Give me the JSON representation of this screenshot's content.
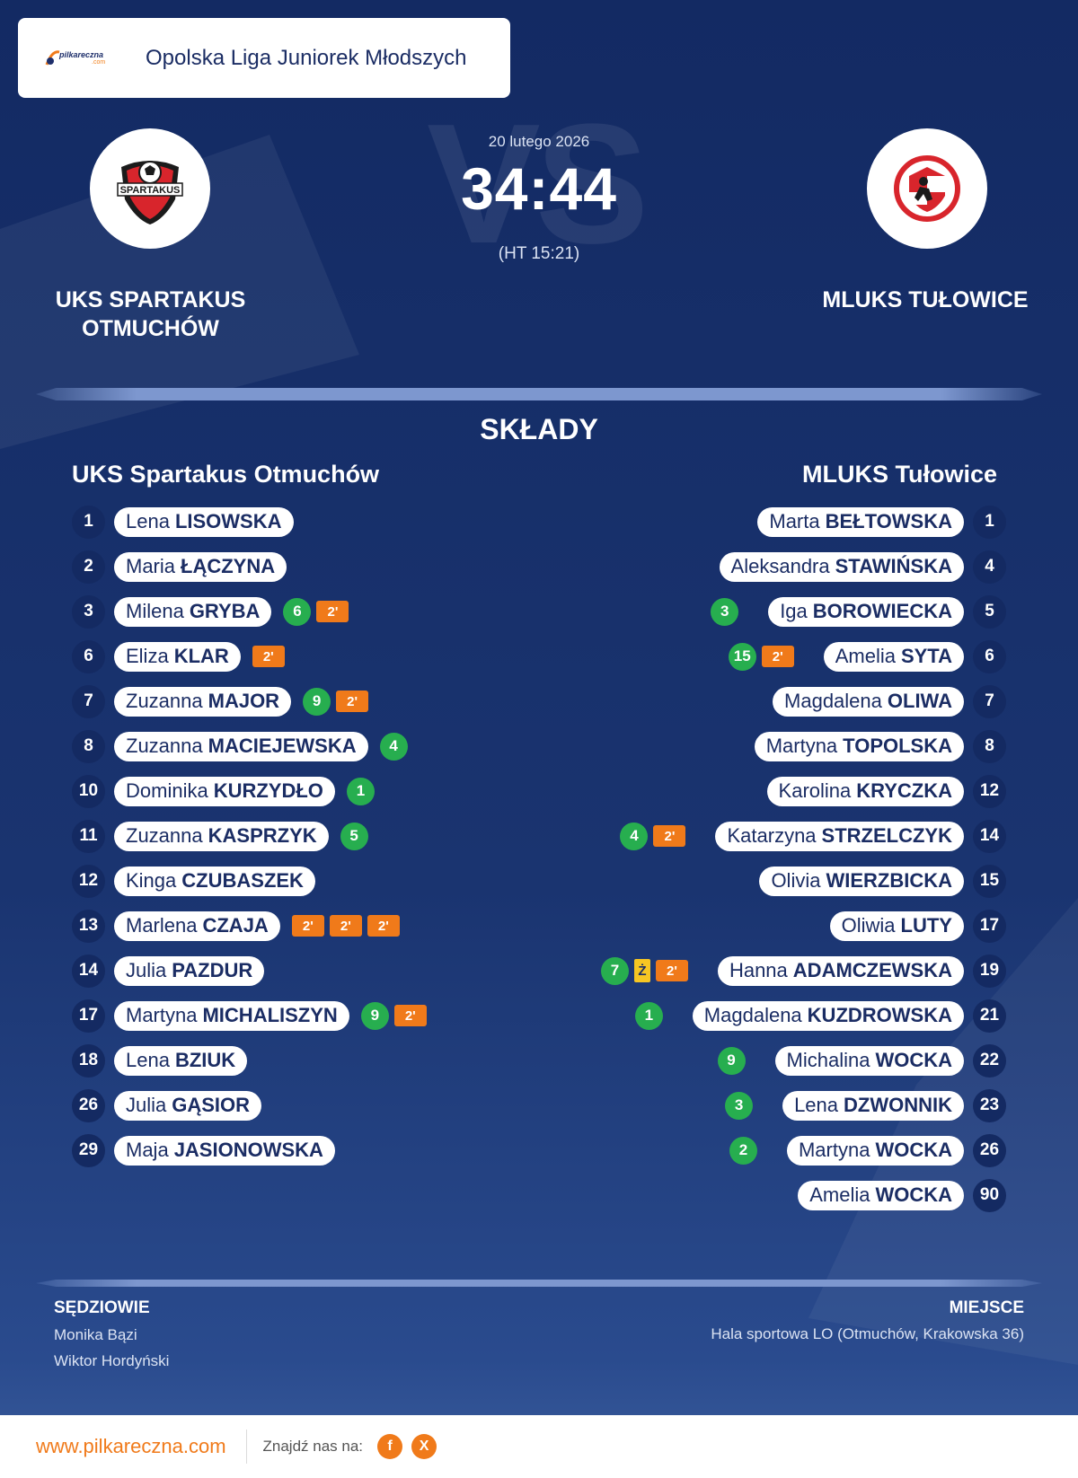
{
  "header": {
    "brand_logo_text": "pilkareczna",
    "brand_logo_sub": ".com",
    "league": "Opolska Liga Juniorek Młodszych"
  },
  "match": {
    "date": "20 lutego 2026",
    "score": "34:44",
    "halftime": "(HT 15:21)",
    "vs_watermark": "VS"
  },
  "home": {
    "name_upper": "UKS SPARTAKUS OTMUCHÓW",
    "crest_text": "SPARTAKUS",
    "squad_title": "UKS Spartakus Otmuchów",
    "players": [
      {
        "number": "1",
        "first": "Lena",
        "last": "LISOWSKA",
        "goals": "",
        "yellow": "",
        "suspensions": 0
      },
      {
        "number": "2",
        "first": "Maria",
        "last": "ŁĄCZYNA",
        "goals": "",
        "yellow": "",
        "suspensions": 0
      },
      {
        "number": "3",
        "first": "Milena",
        "last": "GRYBA",
        "goals": "6",
        "yellow": "",
        "suspensions": 1
      },
      {
        "number": "6",
        "first": "Eliza",
        "last": "KLAR",
        "goals": "",
        "yellow": "",
        "suspensions": 1
      },
      {
        "number": "7",
        "first": "Zuzanna",
        "last": "MAJOR",
        "goals": "9",
        "yellow": "",
        "suspensions": 1
      },
      {
        "number": "8",
        "first": "Zuzanna",
        "last": "MACIEJEWSKA",
        "goals": "4",
        "yellow": "",
        "suspensions": 0
      },
      {
        "number": "10",
        "first": "Dominika",
        "last": "KURZYDŁO",
        "goals": "1",
        "yellow": "",
        "suspensions": 0
      },
      {
        "number": "11",
        "first": "Zuzanna",
        "last": "KASPRZYK",
        "goals": "5",
        "yellow": "",
        "suspensions": 0
      },
      {
        "number": "12",
        "first": "Kinga",
        "last": "CZUBASZEK",
        "goals": "",
        "yellow": "",
        "suspensions": 0
      },
      {
        "number": "13",
        "first": "Marlena",
        "last": "CZAJA",
        "goals": "",
        "yellow": "",
        "suspensions": 3
      },
      {
        "number": "14",
        "first": "Julia",
        "last": "PAZDUR",
        "goals": "",
        "yellow": "",
        "suspensions": 0
      },
      {
        "number": "17",
        "first": "Martyna",
        "last": "MICHALISZYN",
        "goals": "9",
        "yellow": "",
        "suspensions": 1
      },
      {
        "number": "18",
        "first": "Lena",
        "last": "BZIUK",
        "goals": "",
        "yellow": "",
        "suspensions": 0
      },
      {
        "number": "26",
        "first": "Julia",
        "last": "GĄSIOR",
        "goals": "",
        "yellow": "",
        "suspensions": 0
      },
      {
        "number": "29",
        "first": "Maja",
        "last": "JASIONOWSKA",
        "goals": "",
        "yellow": "",
        "suspensions": 0
      }
    ]
  },
  "away": {
    "name_upper": "MLUKS TUŁOWICE",
    "squad_title": "MLUKS Tułowice",
    "players": [
      {
        "number": "1",
        "first": "Marta",
        "last": "BEŁTOWSKA",
        "goals": "",
        "yellow": "",
        "suspensions": 0
      },
      {
        "number": "4",
        "first": "Aleksandra",
        "last": "STAWIŃSKA",
        "goals": "",
        "yellow": "",
        "suspensions": 0
      },
      {
        "number": "5",
        "first": "Iga",
        "last": "BOROWIECKA",
        "goals": "3",
        "yellow": "",
        "suspensions": 0
      },
      {
        "number": "6",
        "first": "Amelia",
        "last": "SYTA",
        "goals": "15",
        "yellow": "",
        "suspensions": 1
      },
      {
        "number": "7",
        "first": "Magdalena",
        "last": "OLIWA",
        "goals": "",
        "yellow": "",
        "suspensions": 0
      },
      {
        "number": "8",
        "first": "Martyna",
        "last": "TOPOLSKA",
        "goals": "",
        "yellow": "",
        "suspensions": 0
      },
      {
        "number": "12",
        "first": "Karolina",
        "last": "KRYCZKA",
        "goals": "",
        "yellow": "",
        "suspensions": 0
      },
      {
        "number": "14",
        "first": "Katarzyna",
        "last": "STRZELCZYK",
        "goals": "4",
        "yellow": "",
        "suspensions": 1
      },
      {
        "number": "15",
        "first": "Olivia",
        "last": "WIERZBICKA",
        "goals": "",
        "yellow": "",
        "suspensions": 0
      },
      {
        "number": "17",
        "first": "Oliwia",
        "last": "LUTY",
        "goals": "",
        "yellow": "",
        "suspensions": 0
      },
      {
        "number": "19",
        "first": "Hanna",
        "last": "ADAMCZEWSKA",
        "goals": "7",
        "yellow": "Ż",
        "suspensions": 1
      },
      {
        "number": "21",
        "first": "Magdalena",
        "last": "KUZDROWSKA",
        "goals": "1",
        "yellow": "",
        "suspensions": 0
      },
      {
        "number": "22",
        "first": "Michalina",
        "last": "WOCKA",
        "goals": "9",
        "yellow": "",
        "suspensions": 0
      },
      {
        "number": "23",
        "first": "Lena",
        "last": "DZWONNIK",
        "goals": "3",
        "yellow": "",
        "suspensions": 0
      },
      {
        "number": "26",
        "first": "Martyna",
        "last": "WOCKA",
        "goals": "2",
        "yellow": "",
        "suspensions": 0
      },
      {
        "number": "90",
        "first": "Amelia",
        "last": "WOCKA",
        "goals": "",
        "yellow": "",
        "suspensions": 0
      }
    ]
  },
  "suspension_label": "2'",
  "section_title": "SKŁADY",
  "officials": {
    "label": "SĘDZIOWIE",
    "names": [
      "Monika Bązi",
      "Wiktor Hordyński"
    ]
  },
  "venue": {
    "label": "MIEJSCE",
    "value": "Hala sportowa LO (Otmuchów, Krakowska 36)"
  },
  "footer": {
    "site": "www.pilkareczna.com",
    "find_label": "Znajdź nas na:",
    "social": [
      {
        "icon": "facebook-icon",
        "glyph": "f"
      },
      {
        "icon": "x-icon",
        "glyph": "X"
      }
    ]
  },
  "colors": {
    "goal": "#27ae4f",
    "suspension": "#f07a1a",
    "yellow_card": "#f6c623",
    "accent": "#f07a1a",
    "navy": "#142a62"
  }
}
